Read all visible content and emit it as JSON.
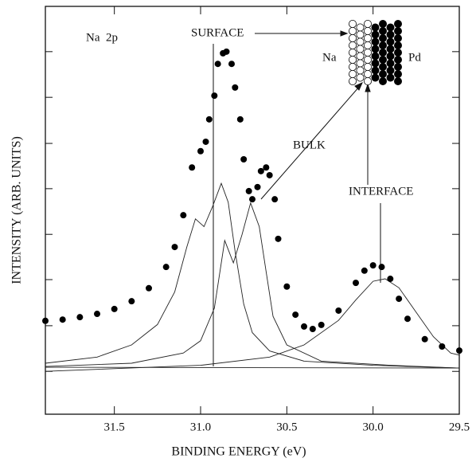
{
  "chart_data": {
    "type": "scatter",
    "x_label": "BINDING ENERGY (eV)",
    "y_label": "INTENSITY (ARB. UNITS)",
    "xlim": [
      31.9,
      29.5
    ],
    "ylim": [
      0,
      100
    ],
    "xticks": [
      31.5,
      {
        "value": 31,
        "label": "31.0"
      },
      30.5,
      {
        "value": 30,
        "label": "30.0"
      },
      29.5
    ],
    "yticks": [
      10.5,
      21.7,
      33.0,
      44.1,
      55.3,
      66.4,
      77.7,
      88.9
    ],
    "color": "#000000",
    "x": [
      31.9,
      31.8,
      31.7,
      31.6,
      31.5,
      31.4,
      31.3,
      31.2,
      31.15,
      31.1,
      31.05,
      31.0,
      30.97,
      30.95,
      30.92,
      30.9,
      30.87,
      30.85,
      30.82,
      30.8,
      30.77,
      30.75,
      30.72,
      30.7,
      30.67,
      30.65,
      30.62,
      30.6,
      30.57,
      30.55,
      30.5,
      30.45,
      30.4,
      30.35,
      30.3,
      30.2,
      30.1,
      30.05,
      30.0,
      29.95,
      29.9,
      29.85,
      29.8,
      29.7,
      29.6,
      29.5
    ],
    "values": [
      22.9,
      23.2,
      23.8,
      24.6,
      25.8,
      27.7,
      30.9,
      36.1,
      41.0,
      48.8,
      60.5,
      64.5,
      66.8,
      72.3,
      78.1,
      85.9,
      88.5,
      88.9,
      85.9,
      80.1,
      72.3,
      62.5,
      54.7,
      52.7,
      55.7,
      59.6,
      60.5,
      58.6,
      52.7,
      43.0,
      31.3,
      24.4,
      21.5,
      20.9,
      21.9,
      25.4,
      32.2,
      35.2,
      36.5,
      36.1,
      33.2,
      28.3,
      23.4,
      18.4,
      16.6,
      15.6
    ],
    "fit_curves": [
      {
        "x": [
          31.9,
          31.6,
          31.4,
          31.25,
          31.15,
          31.08,
          31.03,
          30.98,
          30.93,
          30.88,
          30.84,
          30.8,
          30.75,
          30.7,
          30.6,
          30.4,
          30.0,
          29.5
        ],
        "values": [
          12.5,
          14,
          17,
          22,
          30,
          41,
          47.9,
          46,
          51,
          56.6,
          52,
          40,
          27,
          20,
          15.5,
          13,
          12,
          11.3
        ]
      },
      {
        "x": [
          31.9,
          31.4,
          31.1,
          31.0,
          30.92,
          30.86,
          30.81,
          30.76,
          30.71,
          30.66,
          30.62,
          30.58,
          30.5,
          30.3,
          29.9,
          29.5
        ],
        "values": [
          11.7,
          12.5,
          15,
          18,
          26,
          42.6,
          37.1,
          44,
          51.8,
          46,
          35,
          24,
          17,
          13,
          12,
          11.3
        ]
      },
      {
        "x": [
          31.9,
          31.0,
          30.6,
          30.4,
          30.2,
          30.1,
          30.0,
          29.93,
          29.85,
          29.75,
          29.65,
          29.55,
          29.5
        ],
        "values": [
          10.5,
          12,
          14,
          17,
          23,
          28,
          32.6,
          33.2,
          31,
          25,
          19,
          15,
          14.5
        ]
      },
      {
        "x": [
          31.9,
          29.5
        ],
        "values": [
          11.5,
          11.3
        ]
      }
    ],
    "annotations": [
      "Na  2p",
      "SURFACE",
      "BULK",
      "INTERFACE",
      "Na",
      "Pd"
    ]
  }
}
